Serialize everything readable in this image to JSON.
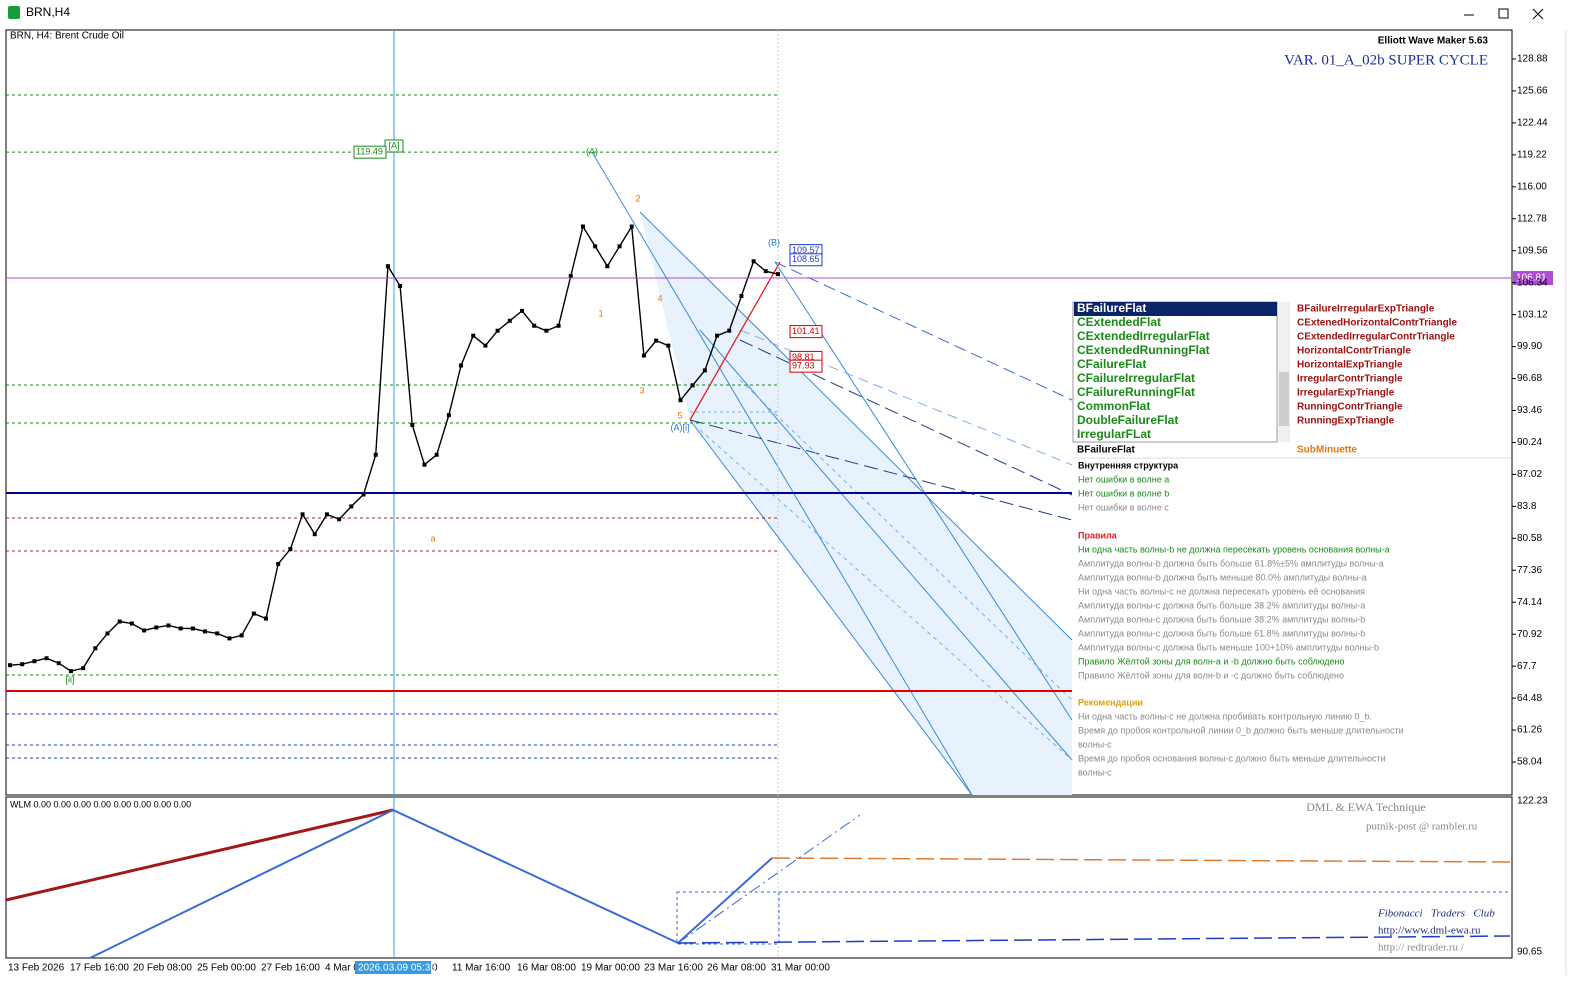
{
  "window": {
    "title": "BRN,H4"
  },
  "chart": {
    "symbol_label": "BRN, H4:  Brent Crude Oil",
    "indicator_name": "Elliott Wave Maker 5.63",
    "variant": "VAR. 01_A_02b SUPER CYCLE",
    "ylim": [
      54.72,
      131.8
    ],
    "yticks": [
      128.88,
      125.66,
      122.44,
      119.22,
      {
        "value": 116,
        "label": "116.00"
      },
      112.78,
      109.56,
      106.34,
      103.12,
      {
        "value": 99.9,
        "label": "99.90"
      },
      96.68,
      93.46,
      90.24,
      87.02,
      83.8,
      80.58,
      77.36,
      74.14,
      70.92,
      67.7,
      64.48,
      61.26,
      58.04
    ],
    "current_price": 106.81,
    "close": [
      67.8,
      67.9,
      68.2,
      68.5,
      68.0,
      67.2,
      67.5,
      69.5,
      71.0,
      72.2,
      72.0,
      71.3,
      71.6,
      71.8,
      71.5,
      71.5,
      71.2,
      71.0,
      70.5,
      70.8,
      73.0,
      72.5,
      78.0,
      79.5,
      83.0,
      81.0,
      83.0,
      82.5,
      83.8,
      85.0,
      89.0,
      108.0,
      106.0,
      92.0,
      88.0,
      89.0,
      93.0,
      98.0,
      101.0,
      100.0,
      101.5,
      102.5,
      103.5,
      102.0,
      101.5,
      102.0,
      107.0,
      112.0,
      110.0,
      108.0,
      110.0,
      112.0,
      99.0,
      100.5,
      100.0,
      94.5,
      96.0,
      97.5,
      101.0,
      101.5,
      105.0,
      108.5,
      107.5,
      107.2
    ],
    "levels": [
      {
        "value": 125.25,
        "color": "#1a8a1a",
        "style": "dot"
      },
      {
        "value": 119.5,
        "color": "#1a8a1a",
        "style": "dot"
      },
      {
        "value": 96.03,
        "color": "#1a8a1a",
        "style": "dot"
      },
      {
        "value": 92.2,
        "color": "#1a8a1a",
        "style": "dot"
      },
      {
        "value": 85.15,
        "color": "#00008b",
        "style": "solid"
      },
      {
        "value": 82.63,
        "color": "#a52a2a",
        "style": "dot"
      },
      {
        "value": 79.3,
        "color": "#a52a2a",
        "style": "dot"
      },
      {
        "value": 66.81,
        "color": "#1a8a1a",
        "style": "dot"
      },
      {
        "value": 65.2,
        "color": "#e00000",
        "style": "solid"
      },
      {
        "value": 62.88,
        "color": "#1e3cc8",
        "style": "dot"
      },
      {
        "value": 59.76,
        "color": "#1e3cc8",
        "style": "dot"
      },
      {
        "value": 58.45,
        "color": "#1e3cc8",
        "style": "dot"
      }
    ],
    "price_tags": [
      {
        "value": 119.49,
        "color": "#1a8a1a"
      },
      {
        "value": 109.57,
        "color": "#1e3cc8"
      },
      {
        "value": 108.65,
        "color": "#1e3cc8"
      },
      {
        "value": 101.41,
        "color": "#d00000"
      },
      {
        "value": 98.81,
        "color": "#d00000"
      },
      {
        "value": 97.93,
        "color": "#d00000"
      }
    ],
    "wave_labels": [
      {
        "text": "[A]",
        "color": "#1a8a1a"
      },
      {
        "text": "(A)",
        "color": "#1a8a1a"
      },
      {
        "text": "(B)",
        "color": "#1e7ad8"
      },
      {
        "text": "[ii]",
        "color": "#1a8a1a"
      },
      {
        "text": "(A)[i]",
        "color": "#1e7ad8"
      },
      {
        "text": "1",
        "color": "#e07a10"
      },
      {
        "text": "2",
        "color": "#e07a10"
      },
      {
        "text": "3",
        "color": "#e07a10"
      },
      {
        "text": "4",
        "color": "#e07a10"
      },
      {
        "text": "5",
        "color": "#e07a10"
      },
      {
        "text": "a",
        "color": "#e07a10"
      }
    ]
  },
  "time_axis": {
    "labels": [
      "13 Feb 2026",
      "17 Feb 16:00",
      "20 Feb 08:00",
      "25 Feb 00:00",
      "27 Feb 16:00",
      "4 Mar 0",
      "0",
      "11 Mar 16:00",
      "16 Mar 08:00",
      "19 Mar 00:00",
      "23 Mar 16:00",
      "26 Mar 08:00",
      "31 Mar 00:00"
    ],
    "cursor_label": "2026.03.09 05:33"
  },
  "pattern_list": {
    "left": [
      "BFailureFlat",
      "CExtendedFlat",
      "CExtendedIrregularFlat",
      "CExtendedRunningFlat",
      "CFailureFlat",
      "CFailureIrregularFlat",
      "CFailureRunningFlat",
      "CommonFlat",
      "DoubleFailureFlat",
      "IrregularFLat"
    ],
    "right": [
      "BFailureIrregularExpTriangle",
      "CExtenedHorizontalContrTriangle",
      "CExtendedIrregularContrTriangle",
      "HorizontalContrTriangle",
      "HorizontalExpTriangle",
      "IrregularContrTriangle",
      "IrregularExpTriangle",
      "RunningContrTriangle",
      "RunningExpTriangle"
    ],
    "selected": "BFailureFlat",
    "degree": "SubMinuette"
  },
  "analysis": {
    "structure_title": "Внутренняя структура",
    "structure": [
      {
        "text": "Нет ошибки в волне a",
        "color": "#1a8a1a"
      },
      {
        "text": "Нет ошибки в волне b",
        "color": "#1a8a1a"
      },
      {
        "text": "Нет ошибки в волне c",
        "color": "#8a8a8a"
      }
    ],
    "rules_title": "Правила",
    "rules": [
      {
        "text": "Ни одна часть волны-b не должна пересекать уровень основания волны-a",
        "color": "#1a8a1a"
      },
      {
        "text": "Амплитуда волны-b должна быть больше 61.8%±5% амплитуды волны-a",
        "color": "#8a8a8a"
      },
      {
        "text": "Амплитуда волны-b должна быть меньше 80.0% амплитуды волны-a",
        "color": "#8a8a8a"
      },
      {
        "text": "Ни одна часть волны-c не должна пересекать уровень её основания",
        "color": "#8a8a8a"
      },
      {
        "text": "Амплитуда волны-c должна быть больше 38.2% амплитуды волны-a",
        "color": "#8a8a8a"
      },
      {
        "text": "Амплитуда волны-c должна быть больше 38.2% амплитуды волны-b",
        "color": "#8a8a8a"
      },
      {
        "text": "Амплитуда волны-c должна быть больше 61.8% амплитуды волны-b",
        "color": "#8a8a8a"
      },
      {
        "text": "Амплитуда волны-c должна быть меньше 100+10% амплитуды волны-b",
        "color": "#8a8a8a"
      },
      {
        "text": "Правило Жёлтой зоны для волн-a и -b должно быть соблюдено",
        "color": "#1a8a1a"
      },
      {
        "text": "Правило Жёлтой зоны для волн-b и -c должно быть соблюдено",
        "color": "#8a8a8a"
      }
    ],
    "recommendations_title": "Рекомендации",
    "recommendations": [
      "Ни одна часть волны-c не должна пробивать контрольную линию 0_b.",
      "Время до пробоя контрольной линии 0_b должно быть меньше длительности",
      "волны-c",
      "Время до пробоя основания волны-c должно быть меньше длительности",
      "волны-c"
    ]
  },
  "subwindow": {
    "label": "WLM 0.00 0.00 0.00 0.00 0.00 0.00 0.00 0.00",
    "yticks": [
      122.23,
      90.65
    ],
    "credits": [
      "DML & EWA Technique",
      "putnik-post @ rambler.ru",
      "Fibonacci   Traders   Club",
      "http://www.dml-ewa.ru",
      "http:// redtrader.ru /"
    ]
  }
}
